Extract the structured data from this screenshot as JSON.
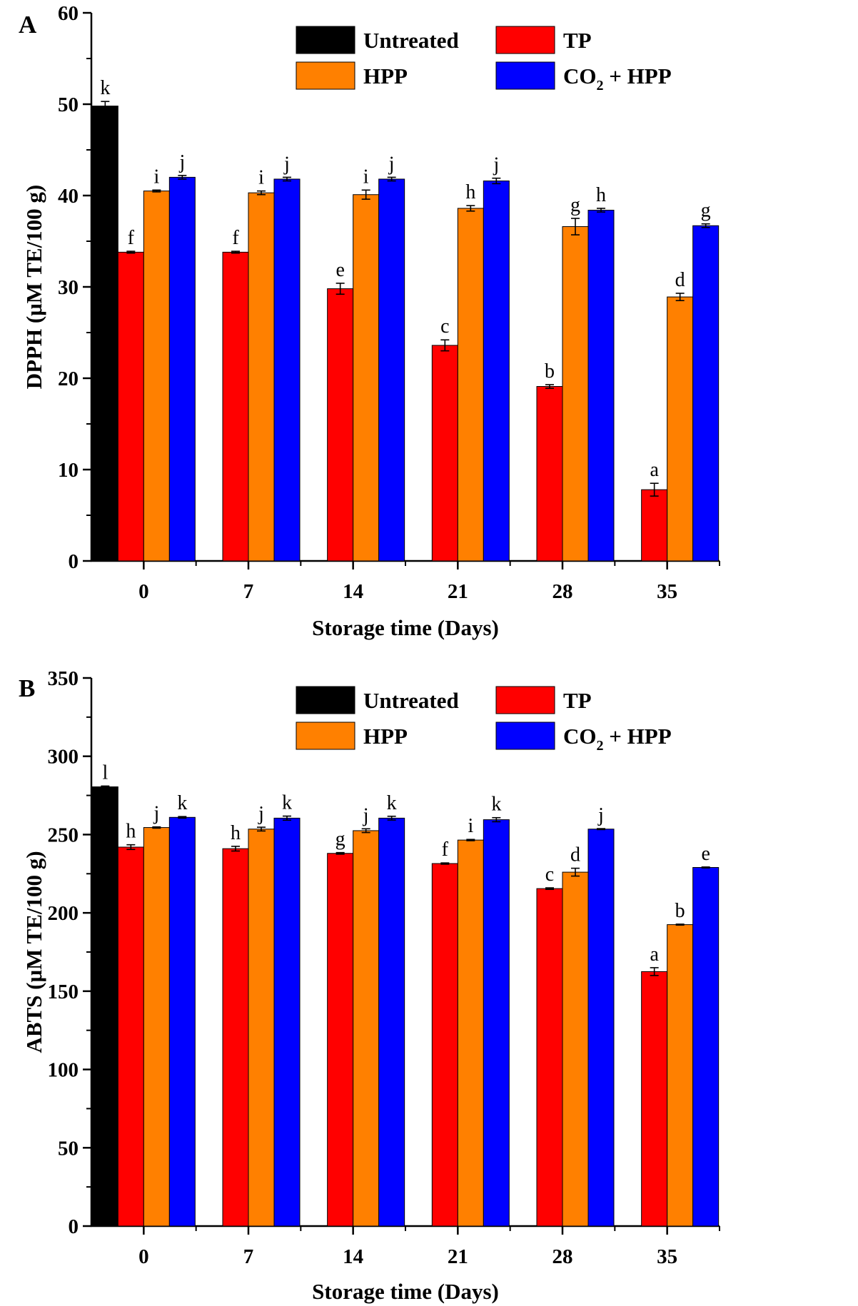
{
  "chart_data": [
    {
      "type": "bar",
      "panel_label": "A",
      "categories": [
        "0",
        "7",
        "14",
        "21",
        "28",
        "35"
      ],
      "xlabel": "Storage time (Days)",
      "ylabel": "DPPH (μM TE/100 g)",
      "ylim": [
        0,
        60
      ],
      "yticks": [
        "0",
        "10",
        "20",
        "30",
        "40",
        "50",
        "60"
      ],
      "legend_placement": "top",
      "grid": false,
      "series": [
        {
          "name": "Untreated",
          "color": "#000000",
          "values": [
            49.8,
            null,
            null,
            null,
            null,
            null
          ],
          "errors": [
            0.5,
            null,
            null,
            null,
            null,
            null
          ],
          "letters": [
            "k",
            "",
            "",
            "",
            "",
            ""
          ]
        },
        {
          "name": "TP",
          "color": "#ff0000",
          "values": [
            33.8,
            33.8,
            29.8,
            23.6,
            19.1,
            7.8
          ],
          "errors": [
            0.1,
            0.1,
            0.6,
            0.6,
            0.2,
            0.7
          ],
          "letters": [
            "f",
            "f",
            "e",
            "c",
            "b",
            "a"
          ]
        },
        {
          "name": "HPP",
          "color": "#ff8000",
          "values": [
            40.5,
            40.3,
            40.1,
            38.6,
            36.6,
            28.9
          ],
          "errors": [
            0.1,
            0.2,
            0.5,
            0.3,
            0.9,
            0.4
          ],
          "letters": [
            "i",
            "i",
            "i",
            "h",
            "g",
            "d"
          ]
        },
        {
          "name": "CO₂ + HPP",
          "color": "#0000ff",
          "values": [
            42.0,
            41.8,
            41.8,
            41.6,
            38.4,
            36.7
          ],
          "errors": [
            0.2,
            0.2,
            0.2,
            0.3,
            0.2,
            0.2
          ],
          "letters": [
            "j",
            "j",
            "j",
            "j",
            "h",
            "g"
          ]
        }
      ]
    },
    {
      "type": "bar",
      "panel_label": "B",
      "categories": [
        "0",
        "7",
        "14",
        "21",
        "28",
        "35"
      ],
      "xlabel": "Storage time (Days)",
      "ylabel": "ABTS (μM TE/100 g)",
      "ylim": [
        0,
        350
      ],
      "yticks": [
        "0",
        "50",
        "100",
        "150",
        "200",
        "250",
        "300",
        "350"
      ],
      "legend_placement": "top",
      "grid": false,
      "series": [
        {
          "name": "Untreated",
          "color": "#000000",
          "values": [
            280.5,
            null,
            null,
            null,
            null,
            null
          ],
          "errors": [
            0.5,
            null,
            null,
            null,
            null,
            null
          ],
          "letters": [
            "l",
            "",
            "",
            "",
            "",
            ""
          ]
        },
        {
          "name": "TP",
          "color": "#ff0000",
          "values": [
            242,
            241,
            238,
            231.5,
            215.5,
            162.5
          ],
          "errors": [
            1.5,
            1.5,
            0.5,
            0.4,
            0.5,
            2.5
          ],
          "letters": [
            "h",
            "h",
            "g",
            "f",
            "c",
            "a"
          ]
        },
        {
          "name": "HPP",
          "color": "#ff8000",
          "values": [
            254.5,
            253.5,
            252.5,
            246.5,
            226,
            192.5
          ],
          "errors": [
            0.4,
            1.2,
            1.2,
            0.4,
            2.5,
            0.3
          ],
          "letters": [
            "j",
            "j",
            "j",
            "i",
            "d",
            "b"
          ]
        },
        {
          "name": "CO₂ + HPP",
          "color": "#0000ff",
          "values": [
            261,
            260.5,
            260.5,
            259.5,
            253.5,
            229
          ],
          "errors": [
            0.5,
            1.3,
            1.2,
            1.3,
            0.3,
            0.3
          ],
          "letters": [
            "k",
            "k",
            "k",
            "k",
            "j",
            "e"
          ]
        }
      ]
    }
  ]
}
